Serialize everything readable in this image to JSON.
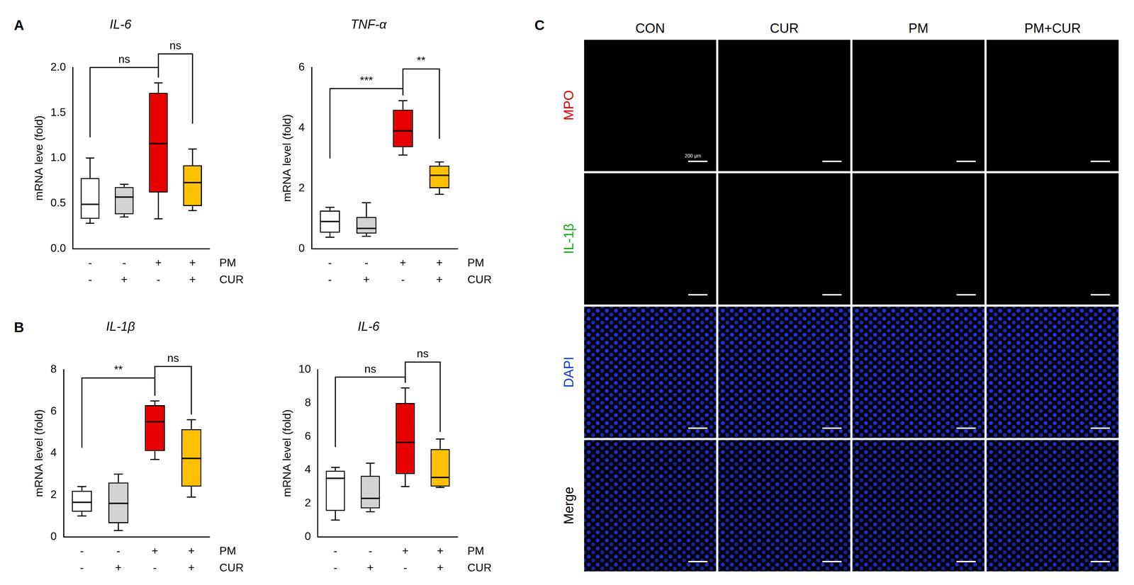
{
  "chart_data": [
    {
      "type": "box",
      "panel": "A",
      "title": "IL-6",
      "y_label": "mRNA leve (fold)",
      "categories": [
        [
          "-",
          "-"
        ],
        [
          "-",
          "+"
        ],
        [
          "+",
          "-"
        ],
        [
          "+",
          "+"
        ]
      ],
      "category_rows": [
        "PM",
        "CUR"
      ],
      "colors": [
        "#ffffff",
        "#d3d3d3",
        "#e60000",
        "#ffc000"
      ],
      "boxes": [
        {
          "min": 0.28,
          "q1": 0.33,
          "median": 0.49,
          "q3": 0.78,
          "max": 1.0
        },
        {
          "min": 0.35,
          "q1": 0.38,
          "median": 0.57,
          "q3": 0.68,
          "max": 0.71
        },
        {
          "min": 0.33,
          "q1": 0.62,
          "median": 1.16,
          "q3": 1.72,
          "max": 1.83
        },
        {
          "min": 0.42,
          "q1": 0.47,
          "median": 0.73,
          "q3": 0.92,
          "max": 1.1
        }
      ],
      "ylim": [
        0,
        2
      ],
      "yticks": [
        {
          "value": 0,
          "label": "0.0"
        },
        0.5,
        {
          "value": 1,
          "label": "1.0"
        },
        1.5,
        {
          "value": 2,
          "label": "2.0"
        }
      ],
      "grid": false,
      "annotations": [
        {
          "from": 0,
          "to": 2,
          "y": 2.0,
          "text": "ns"
        },
        {
          "from": 2,
          "to": 3,
          "y": 2.15,
          "text": "ns"
        }
      ]
    },
    {
      "type": "box",
      "title": "TNF-α",
      "y_label": "mRNA level (fold)",
      "categories": [
        [
          "-",
          "-"
        ],
        [
          "-",
          "+"
        ],
        [
          "+",
          "-"
        ],
        [
          "+",
          "+"
        ]
      ],
      "category_rows": [
        "PM",
        "CUR"
      ],
      "colors": [
        "#ffffff",
        "#d3d3d3",
        "#e60000",
        "#ffc000"
      ],
      "boxes": [
        {
          "min": 0.38,
          "q1": 0.53,
          "median": 0.9,
          "q3": 1.26,
          "max": 1.37
        },
        {
          "min": 0.41,
          "q1": 0.5,
          "median": 0.67,
          "q3": 1.05,
          "max": 1.52
        },
        {
          "min": 3.1,
          "q1": 3.36,
          "median": 3.9,
          "q3": 4.6,
          "max": 4.9
        },
        {
          "min": 1.8,
          "q1": 2.0,
          "median": 2.43,
          "q3": 2.75,
          "max": 2.87
        }
      ],
      "ylim": [
        0,
        6
      ],
      "yticks": [
        0,
        2,
        4,
        6
      ],
      "grid": false,
      "annotations": [
        {
          "from": 0,
          "to": 2,
          "y": 5.3,
          "text": "***"
        },
        {
          "from": 2,
          "to": 3,
          "y": 5.95,
          "text": "**"
        }
      ]
    },
    {
      "type": "box",
      "panel": "B",
      "title": "IL-1β",
      "y_label": "mRNA level (fold)",
      "categories": [
        [
          "-",
          "-"
        ],
        [
          "-",
          "+"
        ],
        [
          "+",
          "-"
        ],
        [
          "+",
          "+"
        ]
      ],
      "category_rows": [
        "PM",
        "CUR"
      ],
      "colors": [
        "#ffffff",
        "#d3d3d3",
        "#e60000",
        "#ffc000"
      ],
      "boxes": [
        {
          "min": 1.0,
          "q1": 1.2,
          "median": 1.65,
          "q3": 2.2,
          "max": 2.4
        },
        {
          "min": 0.3,
          "q1": 0.65,
          "median": 1.6,
          "q3": 2.6,
          "max": 3.0
        },
        {
          "min": 3.7,
          "q1": 4.1,
          "median": 5.5,
          "q3": 6.3,
          "max": 6.5
        },
        {
          "min": 1.9,
          "q1": 2.4,
          "median": 3.75,
          "q3": 5.15,
          "max": 5.6
        }
      ],
      "ylim": [
        0,
        8
      ],
      "yticks": [
        0,
        2,
        4,
        6,
        8
      ],
      "grid": false,
      "annotations": [
        {
          "from": 0,
          "to": 2,
          "y": 7.6,
          "text": "**"
        },
        {
          "from": 2,
          "to": 3,
          "y": 8.15,
          "text": "ns"
        }
      ]
    },
    {
      "type": "box",
      "title": "IL-6",
      "y_label": "mRNA level (fold)",
      "categories": [
        [
          "-",
          "-"
        ],
        [
          "-",
          "+"
        ],
        [
          "+",
          "-"
        ],
        [
          "+",
          "+"
        ]
      ],
      "category_rows": [
        "PM",
        "CUR"
      ],
      "colors": [
        "#ffffff",
        "#d3d3d3",
        "#e60000",
        "#ffc000"
      ],
      "boxes": [
        {
          "min": 1.0,
          "q1": 1.55,
          "median": 3.5,
          "q3": 3.95,
          "max": 4.15
        },
        {
          "min": 1.5,
          "q1": 1.7,
          "median": 2.3,
          "q3": 3.65,
          "max": 4.4
        },
        {
          "min": 3.0,
          "q1": 3.75,
          "median": 5.65,
          "q3": 8.0,
          "max": 8.9
        },
        {
          "min": 2.95,
          "q1": 3.0,
          "median": 3.55,
          "q3": 5.25,
          "max": 5.85
        }
      ],
      "ylim": [
        0,
        10
      ],
      "yticks": [
        0,
        2,
        4,
        6,
        8,
        10
      ],
      "grid": false,
      "annotations": [
        {
          "from": 0,
          "to": 2,
          "y": 9.55,
          "text": "ns"
        },
        {
          "from": 2,
          "to": 3,
          "y": 10.45,
          "text": "ns"
        }
      ]
    }
  ],
  "image_grid": {
    "panel": "C",
    "columns": [
      "CON",
      "CUR",
      "PM",
      "PM+CUR"
    ],
    "rows": [
      {
        "name": "MPO",
        "color": "#e00000"
      },
      {
        "name": "IL-1β",
        "color": "#10b010"
      },
      {
        "name": "DAPI",
        "color": "#1a3ccf"
      },
      {
        "name": "Merge",
        "color": "#000000"
      }
    ],
    "scale_bar": "200 μm"
  }
}
